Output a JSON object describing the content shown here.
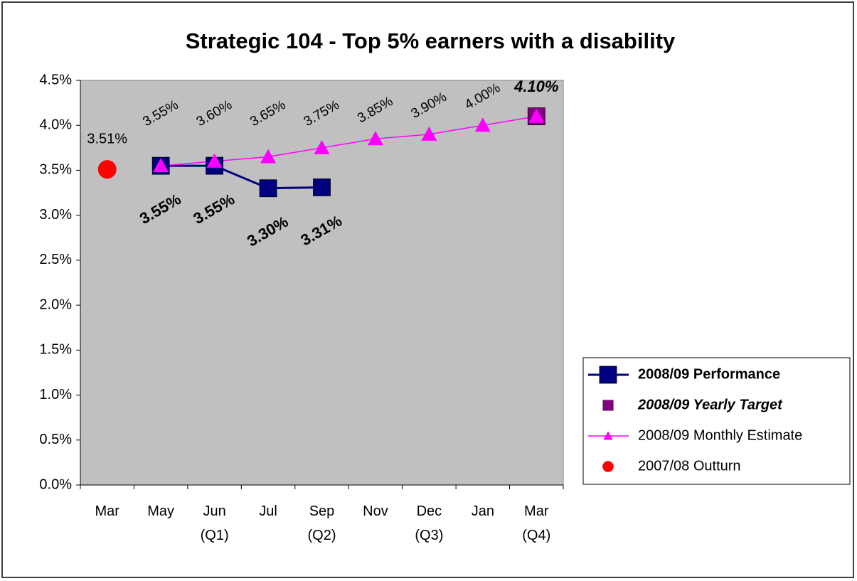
{
  "chart_data": {
    "type": "line",
    "title": "Strategic 104 - Top 5% earners with a disability",
    "categories": [
      "Mar",
      "May",
      "Jun\n(Q1)",
      "Jul",
      "Sep\n(Q2)",
      "Nov",
      "Dec\n(Q3)",
      "Jan",
      "Mar\n(Q4)"
    ],
    "ylim": [
      0,
      4.5
    ],
    "yticks": [
      {
        "value": 0,
        "label": "0.0%"
      },
      {
        "value": 0.5,
        "label": "0.5%"
      },
      {
        "value": 1,
        "label": "1.0%"
      },
      {
        "value": 1.5,
        "label": "1.5%"
      },
      {
        "value": 2,
        "label": "2.0%"
      },
      {
        "value": 2.5,
        "label": "2.5%"
      },
      {
        "value": 3,
        "label": "3.0%"
      },
      {
        "value": 3.5,
        "label": "3.5%"
      },
      {
        "value": 4,
        "label": "4.0%"
      },
      {
        "value": 4.5,
        "label": "4.5%"
      }
    ],
    "grid": false,
    "legend": "right",
    "series": [
      {
        "name": "2008/09 Performance",
        "color": "#000080",
        "marker": "square",
        "line": true,
        "values": [
          null,
          3.55,
          3.55,
          3.3,
          3.31,
          null,
          null,
          null,
          null
        ],
        "value_labels": [
          null,
          "3.55%",
          "3.55%",
          "3.30%",
          "3.31%",
          null,
          null,
          null,
          null
        ]
      },
      {
        "name": "2008/09 Yearly Target",
        "color": "#800080",
        "marker": "square",
        "line": false,
        "values": [
          null,
          null,
          null,
          null,
          null,
          null,
          null,
          null,
          4.1
        ],
        "value_labels": [
          null,
          null,
          null,
          null,
          null,
          null,
          null,
          null,
          "4.10%"
        ]
      },
      {
        "name": "2008/09 Monthly Estimate",
        "color": "#ff00ff",
        "marker": "triangle",
        "line": true,
        "values": [
          null,
          3.55,
          3.6,
          3.65,
          3.75,
          3.85,
          3.9,
          4.0,
          4.1
        ],
        "value_labels": [
          null,
          "3.55%",
          "3.60%",
          "3.65%",
          "3.75%",
          "3.85%",
          "3.90%",
          "4.00%",
          null
        ]
      },
      {
        "name": "2007/08 Outturn",
        "color": "#ff0000",
        "marker": "circle",
        "line": false,
        "values": [
          3.51,
          null,
          null,
          null,
          null,
          null,
          null,
          null,
          null
        ],
        "value_labels": [
          "3.51%",
          null,
          null,
          null,
          null,
          null,
          null,
          null,
          null
        ]
      }
    ]
  }
}
